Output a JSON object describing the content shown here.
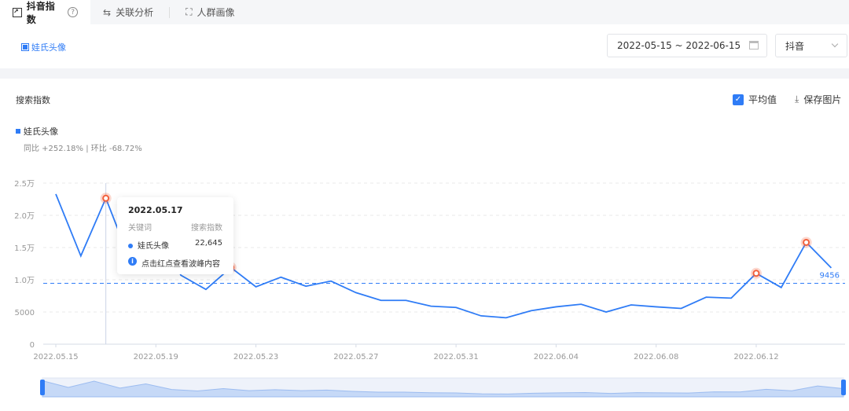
{
  "tabs": [
    {
      "label": "抖音指数",
      "icon": "trend-chart-icon",
      "active": true
    },
    {
      "label": "关联分析",
      "icon": "relation-icon"
    },
    {
      "label": "人群画像",
      "icon": "person-scan-icon"
    }
  ],
  "keyword_tag": "娃氏头像",
  "date_range": "2022-05-15 ~ 2022-06-15",
  "platform": "抖音",
  "card": {
    "title": "搜索指数",
    "avg_label": "平均值",
    "avg_checked": true,
    "save_label": "保存图片",
    "legend": "娃氏头像",
    "compare": "同比 +252.18% | 环比 -68.72%"
  },
  "tooltip": {
    "date": "2022.05.17",
    "col_keyword": "关键词",
    "col_index": "搜索指数",
    "keyword": "娃氏头像",
    "value": "22,645",
    "hint": "点击红点查看波峰内容"
  },
  "colors": {
    "line": "#2f7cf6",
    "peak": "#f2603c"
  },
  "chart_data": {
    "type": "line",
    "x": [
      "2022.05.15",
      "2022.05.16",
      "2022.05.17",
      "2022.05.18",
      "2022.05.19",
      "2022.05.20",
      "2022.05.21",
      "2022.05.22",
      "2022.05.23",
      "2022.05.24",
      "2022.05.25",
      "2022.05.26",
      "2022.05.27",
      "2022.05.28",
      "2022.05.29",
      "2022.05.30",
      "2022.05.31",
      "2022.06.01",
      "2022.06.02",
      "2022.06.03",
      "2022.06.04",
      "2022.06.05",
      "2022.06.06",
      "2022.06.07",
      "2022.06.08",
      "2022.06.09",
      "2022.06.10",
      "2022.06.11",
      "2022.06.12",
      "2022.06.13",
      "2022.06.14",
      "2022.06.15"
    ],
    "series": [
      {
        "name": "娃氏头像",
        "values": [
          23300,
          13700,
          22645,
          12700,
          18800,
          10700,
          8500,
          11900,
          8900,
          10400,
          9000,
          9800,
          8000,
          6800,
          6800,
          5900,
          5700,
          4400,
          4100,
          5200,
          5800,
          6200,
          5000,
          6100,
          5800,
          5550,
          7300,
          7150,
          11000,
          8800,
          15800,
          11850
        ]
      }
    ],
    "peaks": [
      "2022.05.17",
      "2022.05.19",
      "2022.05.22",
      "2022.06.12",
      "2022.06.14"
    ],
    "average": 9456,
    "average_label": "9456",
    "ylim": [
      0,
      25000
    ],
    "yticks": [
      "0",
      "5000",
      "1.0万",
      "1.5万",
      "2.0万",
      "2.5万"
    ],
    "xticks": [
      "2022.05.15",
      "2022.05.19",
      "2022.05.23",
      "2022.05.27",
      "2022.05.31",
      "2022.06.04",
      "2022.06.08",
      "2022.06.12"
    ],
    "grid": true
  }
}
